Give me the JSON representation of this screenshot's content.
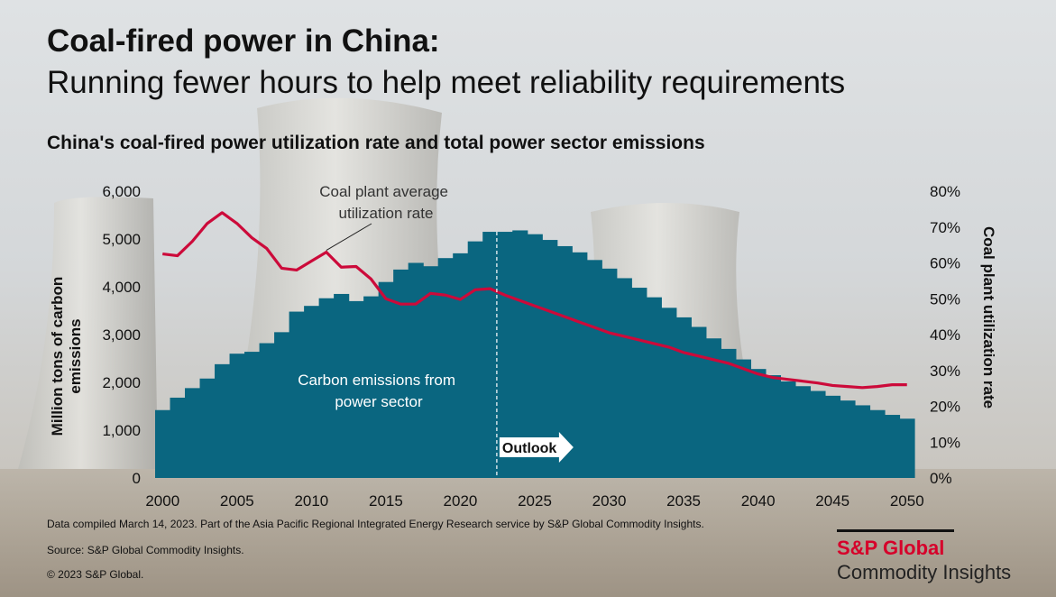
{
  "title": "Coal-fired power in China:",
  "subtitle": "Running fewer hours to help meet reliability requirements",
  "colors": {
    "bars": "#0a6680",
    "line": "#cc0a3a",
    "brand": "#d6002a"
  },
  "chart_data": {
    "type": "bar+line",
    "title": "China's coal-fired power utilization rate and total power sector emissions",
    "left_axis": {
      "label": "Million  tons of carbon emissions",
      "range": [
        0,
        6000
      ],
      "ticks": [
        "0",
        "1,000",
        "2,000",
        "3,000",
        "4,000",
        "5,000",
        "6,000"
      ]
    },
    "right_axis": {
      "label": "Coal plant utilization  rate",
      "range": [
        0,
        80
      ],
      "ticks": [
        "0%",
        "10%",
        "20%",
        "30%",
        "40%",
        "50%",
        "60%",
        "70%",
        "80%"
      ]
    },
    "x_axis": {
      "range": [
        2000,
        2050
      ],
      "ticks": [
        "2000",
        "2005",
        "2010",
        "2015",
        "2020",
        "2025",
        "2030",
        "2035",
        "2040",
        "2045",
        "2050"
      ]
    },
    "years": [
      2000,
      2001,
      2002,
      2003,
      2004,
      2005,
      2006,
      2007,
      2008,
      2009,
      2010,
      2011,
      2012,
      2013,
      2014,
      2015,
      2016,
      2017,
      2018,
      2019,
      2020,
      2021,
      2022,
      2023,
      2024,
      2025,
      2026,
      2027,
      2028,
      2029,
      2030,
      2031,
      2032,
      2033,
      2034,
      2035,
      2036,
      2037,
      2038,
      2039,
      2040,
      2041,
      2042,
      2043,
      2044,
      2045,
      2046,
      2047,
      2048,
      2049,
      2050
    ],
    "series": [
      {
        "type": "bar",
        "axis": "left",
        "values": [
          1420,
          1680,
          1880,
          2080,
          2380,
          2600,
          2640,
          2820,
          3050,
          3480,
          3600,
          3760,
          3850,
          3700,
          3800,
          4100,
          4360,
          4500,
          4430,
          4600,
          4700,
          4950,
          5150,
          5150,
          5180,
          5100,
          4980,
          4850,
          4720,
          4560,
          4380,
          4180,
          3980,
          3780,
          3560,
          3360,
          3160,
          2920,
          2700,
          2480,
          2280,
          2150,
          2020,
          1920,
          1820,
          1720,
          1620,
          1520,
          1420,
          1320,
          1240
        ]
      },
      {
        "type": "line",
        "axis": "right",
        "values": [
          62.5,
          62.0,
          66.0,
          71.0,
          74.0,
          71.0,
          67.0,
          64.0,
          58.5,
          58.0,
          60.5,
          63.0,
          58.8,
          59.0,
          55.5,
          50.0,
          48.5,
          48.5,
          51.5,
          51.0,
          49.8,
          52.5,
          52.8,
          51.0,
          49.5,
          48.0,
          46.5,
          45.0,
          43.5,
          42.0,
          40.5,
          39.5,
          38.5,
          37.5,
          36.5,
          35.0,
          34.0,
          33.0,
          32.0,
          30.5,
          29.0,
          28.0,
          27.5,
          27.0,
          26.5,
          25.8,
          25.5,
          25.2,
          25.5,
          26.0,
          26.0
        ]
      }
    ],
    "annotations": {
      "line_label": "Coal plant average utilization rate",
      "bar_label": "Carbon emissions from power sector",
      "outlook_label": "Outlook",
      "outlook_year": 2022.5
    }
  },
  "footer": {
    "note": "Data compiled March 14, 2023. Part of the Asia Pacific Regional Integrated  Energy Research service by S&P Global Commodity Insights.",
    "source": "Source: S&P Global Commodity Insights.",
    "copyright": "© 2023 S&P Global."
  },
  "logo": {
    "line1": "S&P Global",
    "line2": "Commodity Insights"
  }
}
